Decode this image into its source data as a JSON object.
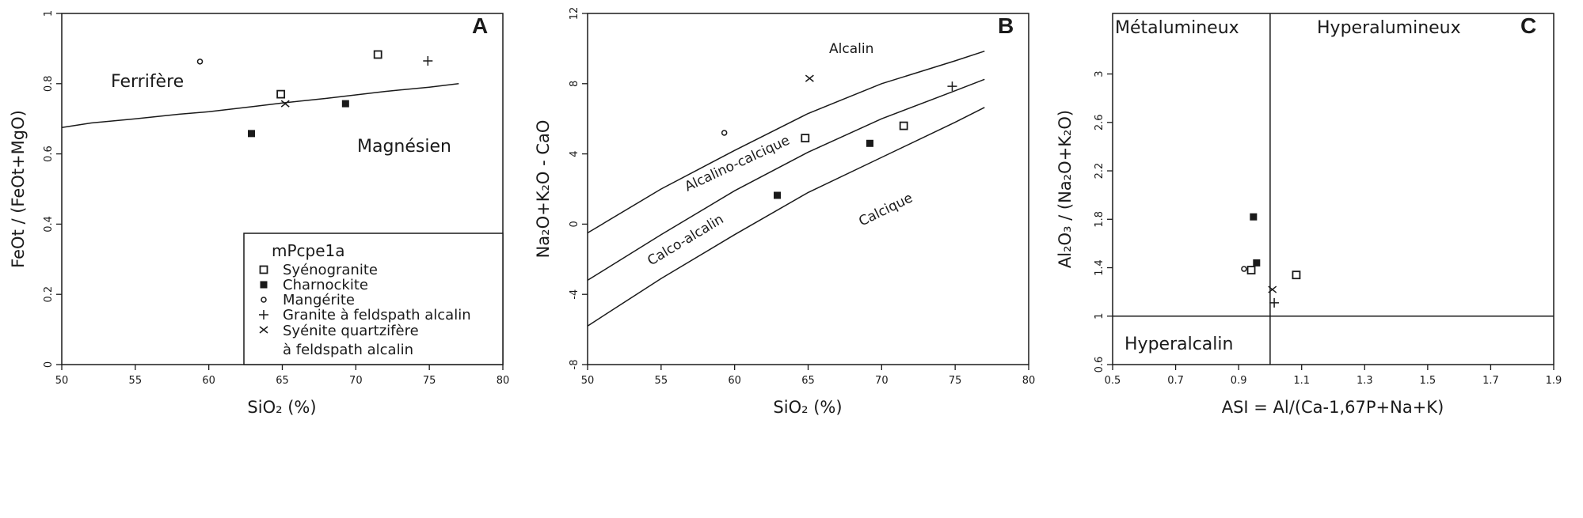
{
  "chart_data": [
    {
      "panel": "A",
      "type": "scatter",
      "xlabel": "SiO₂ (%)",
      "ylabel": "FeOt / (FeOt+MgO)",
      "xlim": [
        50,
        80
      ],
      "ylim": [
        0,
        1
      ],
      "xticks": [
        "50",
        "55",
        "60",
        "65",
        "70",
        "75",
        "80"
      ],
      "yticks": [
        "0",
        "0.2",
        "0.4",
        "0.6",
        "0.8",
        "1"
      ],
      "regions": [
        "Ferrifère",
        "Magnésien"
      ],
      "boundaries": [
        {
          "name": "ferrifere-magnesien",
          "x": [
            50,
            52,
            55,
            58,
            60,
            63,
            65,
            68,
            70,
            72,
            75,
            77
          ],
          "y": [
            0.675,
            0.688,
            0.7,
            0.713,
            0.72,
            0.735,
            0.745,
            0.758,
            0.768,
            0.778,
            0.79,
            0.8
          ]
        }
      ],
      "points": [
        {
          "series": "Syénogranite",
          "x": 71.5,
          "y": 0.883
        },
        {
          "series": "Syénogranite",
          "x": 64.9,
          "y": 0.77
        },
        {
          "series": "Charnockite",
          "x": 69.3,
          "y": 0.743
        },
        {
          "series": "Charnockite",
          "x": 62.9,
          "y": 0.658
        },
        {
          "series": "Mangérite",
          "x": 59.4,
          "y": 0.863
        },
        {
          "series": "Granite à feldspath alcalin",
          "x": 74.9,
          "y": 0.865
        },
        {
          "series": "Syénite quartzifère à feldspath alcalin",
          "x": 65.2,
          "y": 0.743
        }
      ],
      "legend": {
        "title": "mPcpe1a",
        "placement": "bottom-right",
        "items": [
          {
            "label": "Syénogranite",
            "symbol": "open-square"
          },
          {
            "label": "Charnockite",
            "symbol": "filled-square"
          },
          {
            "label": "Mangérite",
            "symbol": "open-circle"
          },
          {
            "label": "Granite à feldspath alcalin",
            "symbol": "plus"
          },
          {
            "label": "Syénite quartzifère",
            "label_line2": "à feldspath alcalin",
            "symbol": "cross"
          }
        ]
      }
    },
    {
      "panel": "B",
      "type": "scatter",
      "xlabel": "SiO₂ (%)",
      "ylabel": "Na₂O+K₂O - CaO",
      "xlim": [
        50,
        80
      ],
      "ylim": [
        -8,
        12
      ],
      "xticks": [
        "50",
        "55",
        "60",
        "65",
        "70",
        "75",
        "80"
      ],
      "yticks": [
        "-8",
        "-4",
        "0",
        "4",
        "8",
        "12"
      ],
      "regions": [
        "Alcalin",
        "Alcalino-calcique",
        "Calco-alcalin",
        "Calcique"
      ],
      "boundaries": [
        {
          "name": "alcalin-alcalino-calcique",
          "x": [
            50,
            55,
            60,
            65,
            70,
            75,
            77
          ],
          "y": [
            -0.5,
            2.0,
            4.2,
            6.3,
            8.0,
            9.3,
            9.85
          ]
        },
        {
          "name": "alcalino-calcique-calco-alcalin",
          "x": [
            50,
            55,
            60,
            65,
            70,
            75,
            77
          ],
          "y": [
            -3.2,
            -0.6,
            1.9,
            4.1,
            6.0,
            7.6,
            8.25
          ]
        },
        {
          "name": "calco-alcalin-calcique",
          "x": [
            50,
            55,
            60,
            65,
            70,
            75,
            77
          ],
          "y": [
            -5.8,
            -3.1,
            -0.6,
            1.8,
            3.8,
            5.8,
            6.65
          ]
        }
      ],
      "points": [
        {
          "series": "Syénogranite",
          "x": 71.5,
          "y": 5.6
        },
        {
          "series": "Syénogranite",
          "x": 64.8,
          "y": 4.9
        },
        {
          "series": "Charnockite",
          "x": 69.2,
          "y": 4.6
        },
        {
          "series": "Charnockite",
          "x": 62.9,
          "y": 1.64
        },
        {
          "series": "Mangérite",
          "x": 59.3,
          "y": 5.2
        },
        {
          "series": "Granite à feldspath alcalin",
          "x": 74.8,
          "y": 7.85
        },
        {
          "series": "Syénite quartzifère à feldspath alcalin",
          "x": 65.1,
          "y": 8.3
        }
      ]
    },
    {
      "panel": "C",
      "type": "scatter",
      "xlabel": "ASI = Al/(Ca-1,67P+Na+K)",
      "ylabel": "Al₂O₃ / (Na₂O+K₂O)",
      "xlim": [
        0.5,
        1.9
      ],
      "ylim": [
        0.6,
        3.5
      ],
      "xticks": [
        "0.5",
        "0.7",
        "0.9",
        "1.1",
        "1.3",
        "1.5",
        "1.7",
        "1.9"
      ],
      "yticks": [
        "0.6",
        "1",
        "1.4",
        "1.8",
        "2.2",
        "2.6",
        "3"
      ],
      "regions": [
        "Métalumineux",
        "Hyperalumineux",
        "Hyperalcalin"
      ],
      "boundaries": [
        {
          "name": "asi-1",
          "x": [
            1,
            1
          ],
          "y": [
            0.6,
            3.5
          ]
        },
        {
          "name": "ank-1",
          "x": [
            0.5,
            1.9
          ],
          "y": [
            1,
            1
          ]
        }
      ],
      "points": [
        {
          "series": "Syénogranite",
          "x": 0.94,
          "y": 1.38
        },
        {
          "series": "Syénogranite",
          "x": 1.083,
          "y": 1.34
        },
        {
          "series": "Charnockite",
          "x": 0.947,
          "y": 1.82
        },
        {
          "series": "Charnockite",
          "x": 0.957,
          "y": 1.44
        },
        {
          "series": "Mangérite",
          "x": 0.917,
          "y": 1.39
        },
        {
          "series": "Granite à feldspath alcalin",
          "x": 1.013,
          "y": 1.11
        },
        {
          "series": "Syénite quartzifère à feldspath alcalin",
          "x": 1.007,
          "y": 1.22
        }
      ]
    }
  ],
  "symbols": {
    "Syénogranite": "open-square",
    "Charnockite": "filled-square",
    "Mangérite": "open-circle",
    "Granite à feldspath alcalin": "plus",
    "Syénite quartzifère à feldspath alcalin": "cross"
  },
  "colors": {
    "ink": "#1a1a1a",
    "background": "#ffffff"
  }
}
